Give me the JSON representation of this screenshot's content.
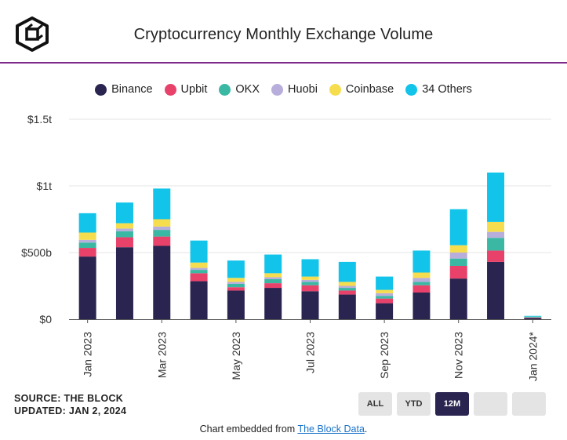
{
  "header": {
    "title": "Cryptocurrency Monthly Exchange Volume"
  },
  "colors": {
    "accent_divider": "#7d2a8a",
    "button_active": "#2a2450"
  },
  "chart_data": {
    "type": "bar",
    "stacked": true,
    "title": "Cryptocurrency Monthly Exchange Volume",
    "xlabel": "",
    "ylabel": "",
    "ylim": [
      0,
      1500
    ],
    "unit": "billion USD",
    "y_ticks": [
      {
        "value": 0,
        "label": "$0"
      },
      {
        "value": 500,
        "label": "$500b"
      },
      {
        "value": 1000,
        "label": "$1t"
      },
      {
        "value": 1500,
        "label": "$1.5t"
      }
    ],
    "categories": [
      "Jan 2023",
      "Feb 2023",
      "Mar 2023",
      "Apr 2023",
      "May 2023",
      "Jun 2023",
      "Jul 2023",
      "Aug 2023",
      "Sep 2023",
      "Oct 2023",
      "Nov 2023",
      "Dec 2023",
      "Jan 2024*"
    ],
    "x_tick_labels": [
      "Jan 2023",
      "Mar 2023",
      "May 2023",
      "Jul 2023",
      "Sep 2023",
      "Nov 2023",
      "Jan 2024*"
    ],
    "series": [
      {
        "name": "Binance",
        "color": "#2a2450",
        "values": [
          470,
          540,
          550,
          285,
          215,
          235,
          210,
          185,
          120,
          200,
          305,
          430,
          10
        ]
      },
      {
        "name": "Upbit",
        "color": "#e8426b",
        "values": [
          65,
          75,
          70,
          60,
          25,
          35,
          45,
          30,
          35,
          55,
          95,
          85,
          2
        ]
      },
      {
        "name": "OKX",
        "color": "#3bb8a4",
        "values": [
          40,
          45,
          50,
          25,
          25,
          30,
          25,
          20,
          20,
          25,
          55,
          95,
          3
        ]
      },
      {
        "name": "Huobi",
        "color": "#b8aedb",
        "values": [
          20,
          20,
          25,
          15,
          15,
          15,
          15,
          15,
          20,
          30,
          45,
          45,
          2
        ]
      },
      {
        "name": "Coinbase",
        "color": "#f6dd4e",
        "values": [
          55,
          40,
          55,
          40,
          30,
          30,
          25,
          30,
          25,
          40,
          55,
          75,
          2
        ]
      },
      {
        "name": "34 Others",
        "color": "#12c3ea",
        "values": [
          145,
          155,
          230,
          165,
          130,
          140,
          130,
          150,
          100,
          165,
          270,
          370,
          6
        ]
      }
    ]
  },
  "footer": {
    "source_line": "SOURCE: THE BLOCK",
    "updated_line": "UPDATED: JAN 2, 2024",
    "range_buttons": [
      {
        "label": "ALL",
        "active": false
      },
      {
        "label": "YTD",
        "active": false
      },
      {
        "label": "12M",
        "active": true
      },
      {
        "label": "",
        "active": false
      },
      {
        "label": "",
        "active": false
      }
    ],
    "embed_prefix": "Chart embedded from ",
    "embed_link": "The Block Data",
    "embed_suffix": "."
  }
}
